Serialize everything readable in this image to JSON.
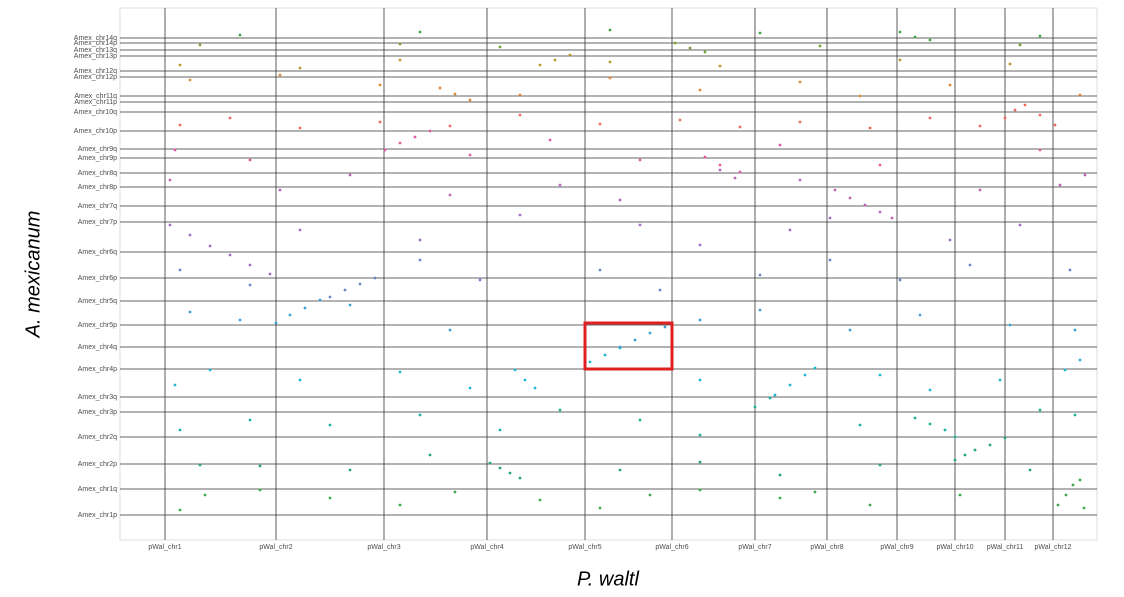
{
  "chart_data": {
    "type": "scatter",
    "x_label": "P. waltl",
    "y_label": "A. mexicanum",
    "xlim": [
      0,
      977
    ],
    "ylim": [
      0,
      532
    ],
    "xticks": [
      {
        "value": 45,
        "label": "pWal_chr1"
      },
      {
        "value": 156,
        "label": "pWal_chr2"
      },
      {
        "value": 264,
        "label": "pWal_chr3"
      },
      {
        "value": 367,
        "label": "pWal_chr4"
      },
      {
        "value": 465,
        "label": "pWal_chr5"
      },
      {
        "value": 552,
        "label": "pWal_chr6"
      },
      {
        "value": 635,
        "label": "pWal_chr7"
      },
      {
        "value": 707,
        "label": "pWal_chr8"
      },
      {
        "value": 777,
        "label": "pWal_chr9"
      },
      {
        "value": 835,
        "label": "pWal_chr10"
      },
      {
        "value": 885,
        "label": "pWal_chr11"
      },
      {
        "value": 933,
        "label": "pWal_chr12"
      }
    ],
    "yticks": [
      {
        "value": 25,
        "label": "Amex_chr1p"
      },
      {
        "value": 51,
        "label": "Amex_chr1q"
      },
      {
        "value": 76,
        "label": "Amex_chr2p"
      },
      {
        "value": 103,
        "label": "Amex_chr2q"
      },
      {
        "value": 128,
        "label": "Amex_chr3p"
      },
      {
        "value": 143,
        "label": "Amex_chr3q"
      },
      {
        "value": 171,
        "label": "Amex_chr4p"
      },
      {
        "value": 193,
        "label": "Amex_chr4q"
      },
      {
        "value": 215,
        "label": "Amex_chr5p"
      },
      {
        "value": 239,
        "label": "Amex_chr5q"
      },
      {
        "value": 262,
        "label": "Amex_chr6p"
      },
      {
        "value": 288,
        "label": "Amex_chr6q"
      },
      {
        "value": 318,
        "label": "Amex_chr7p"
      },
      {
        "value": 334,
        "label": "Amex_chr7q"
      },
      {
        "value": 353,
        "label": "Amex_chr8p"
      },
      {
        "value": 367,
        "label": "Amex_chr8q"
      },
      {
        "value": 382,
        "label": "Amex_chr9p"
      },
      {
        "value": 391,
        "label": "Amex_chr9q"
      },
      {
        "value": 409,
        "label": "Amex_chr10p"
      },
      {
        "value": 428,
        "label": "Amex_chr10q"
      },
      {
        "value": 438,
        "label": "Amex_chr11p"
      },
      {
        "value": 444,
        "label": "Amex_chr11q"
      },
      {
        "value": 463,
        "label": "Amex_chr12p"
      },
      {
        "value": 469,
        "label": "Amex_chr12q"
      },
      {
        "value": 484,
        "label": "Amex_chr13p"
      },
      {
        "value": 490,
        "label": "Amex_chr13q"
      },
      {
        "value": 497,
        "label": "Amex_chr14p"
      },
      {
        "value": 502,
        "label": "Amex_chr14q"
      }
    ],
    "series": [
      {
        "color": "#3cab4b",
        "x": [
          60,
          85,
          140,
          210,
          280,
          335,
          420,
          480,
          530,
          580,
          660,
          695,
          750,
          840,
          938,
          946,
          953,
          960,
          964
        ],
        "values": [
          30,
          45,
          50,
          42,
          35,
          48,
          40,
          32,
          45,
          50,
          42,
          48,
          35,
          45,
          35,
          45,
          55,
          60,
          32
        ]
      },
      {
        "color": "#23a86e",
        "x": [
          370,
          380,
          390,
          400,
          835,
          845,
          855,
          870,
          885,
          80,
          140,
          230,
          310,
          500,
          580,
          660,
          760,
          910
        ],
        "values": [
          77,
          72,
          67,
          62,
          80,
          85,
          90,
          95,
          102,
          75,
          74,
          70,
          85,
          70,
          78,
          65,
          75,
          70
        ]
      },
      {
        "color": "#1db39a",
        "x": [
          795,
          810,
          825,
          835,
          635,
          650,
          60,
          130,
          210,
          300,
          380,
          440,
          520,
          580,
          740,
          920,
          955
        ],
        "values": [
          122,
          116,
          110,
          103,
          133,
          142,
          110,
          120,
          115,
          125,
          110,
          130,
          120,
          105,
          115,
          130,
          125
        ]
      },
      {
        "color": "#22b5d4",
        "x": [
          470,
          485,
          500,
          655,
          670,
          685,
          695,
          395,
          405,
          415,
          55,
          90,
          180,
          280,
          350,
          580,
          760,
          810,
          880,
          945,
          960
        ],
        "values": [
          178,
          185,
          192,
          145,
          155,
          165,
          172,
          170,
          160,
          152,
          155,
          170,
          160,
          168,
          152,
          160,
          165,
          150,
          160,
          170,
          180
        ]
      },
      {
        "color": "#3fa0d8",
        "x": [
          500,
          515,
          530,
          545,
          156,
          170,
          185,
          200,
          70,
          120,
          230,
          330,
          580,
          640,
          730,
          800,
          890,
          955
        ],
        "values": [
          193,
          200,
          207,
          213,
          217,
          225,
          232,
          240,
          228,
          220,
          235,
          210,
          220,
          230,
          210,
          225,
          215,
          210
        ]
      },
      {
        "color": "#6b86cc",
        "x": [
          210,
          225,
          240,
          255,
          60,
          130,
          300,
          360,
          480,
          540,
          640,
          710,
          780,
          850,
          950
        ],
        "values": [
          243,
          250,
          256,
          262,
          270,
          255,
          280,
          260,
          270,
          250,
          265,
          280,
          260,
          275,
          270
        ]
      },
      {
        "color": "#9e6fc4",
        "x": [
          50,
          70,
          90,
          110,
          130,
          150,
          180,
          300,
          400,
          520,
          580,
          670,
          710,
          830,
          900
        ],
        "values": [
          315,
          305,
          294,
          285,
          275,
          266,
          310,
          300,
          325,
          315,
          295,
          310,
          322,
          300,
          315
        ]
      },
      {
        "color": "#c065b5",
        "x": [
          715,
          730,
          745,
          760,
          772,
          600,
          615,
          50,
          160,
          230,
          330,
          440,
          500,
          680,
          860,
          940,
          965
        ],
        "values": [
          350,
          342,
          335,
          328,
          322,
          370,
          362,
          360,
          350,
          365,
          345,
          355,
          340,
          360,
          350,
          355,
          365
        ]
      },
      {
        "color": "#e25aa0",
        "x": [
          265,
          280,
          295,
          310,
          585,
          600,
          620,
          55,
          130,
          350,
          430,
          520,
          660,
          760,
          920
        ],
        "values": [
          390,
          397,
          403,
          409,
          383,
          375,
          368,
          390,
          380,
          385,
          400,
          380,
          395,
          375,
          390
        ]
      },
      {
        "color": "#ed6a5e",
        "x": [
          885,
          895,
          905,
          920,
          935,
          60,
          110,
          180,
          260,
          330,
          400,
          480,
          560,
          620,
          680,
          750,
          810,
          860
        ],
        "values": [
          422,
          430,
          435,
          425,
          415,
          415,
          422,
          412,
          418,
          414,
          425,
          416,
          420,
          413,
          418,
          412,
          422,
          414
        ]
      },
      {
        "color": "#de8a3a",
        "x": [
          320,
          335,
          350,
          70,
          160,
          260,
          400,
          490,
          580,
          680,
          740,
          830,
          960
        ],
        "values": [
          452,
          446,
          440,
          460,
          465,
          455,
          445,
          462,
          450,
          458,
          444,
          455,
          445
        ]
      },
      {
        "color": "#b89a2a",
        "x": [
          420,
          435,
          450,
          60,
          180,
          280,
          490,
          600,
          780,
          890
        ],
        "values": [
          475,
          480,
          485,
          475,
          472,
          480,
          478,
          474,
          480,
          476
        ]
      },
      {
        "color": "#7aa432",
        "x": [
          555,
          570,
          585,
          80,
          280,
          380,
          700,
          900
        ],
        "values": [
          497,
          492,
          488,
          495,
          496,
          493,
          494,
          495
        ]
      },
      {
        "color": "#40a84a",
        "x": [
          780,
          795,
          810,
          120,
          300,
          490,
          640,
          920
        ],
        "values": [
          508,
          503,
          500,
          505,
          508,
          510,
          507,
          504
        ]
      }
    ]
  }
}
